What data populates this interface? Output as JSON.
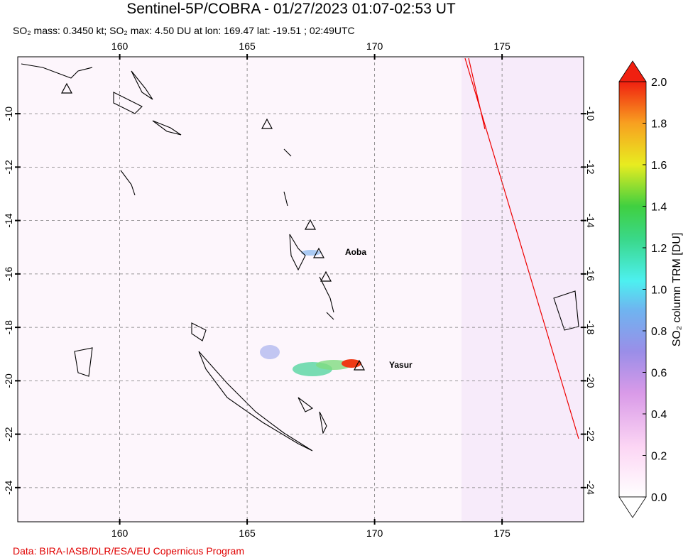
{
  "header": {
    "title": "Sentinel-5P/COBRA - 01/27/2023 01:07-02:53 UT",
    "subtitle": "SO₂ mass: 0.3450 kt; SO₂ max: 4.50 DU at lon: 169.47 lat: -19.51 ; 02:49UTC"
  },
  "map": {
    "lonlim": [
      156,
      178.2
    ],
    "latlim": [
      -25.28,
      -7.87
    ],
    "lon_ticks": [
      160,
      165,
      170,
      175
    ],
    "lat_ticks": [
      -10,
      -12,
      -14,
      -16,
      -18,
      -20,
      -22,
      -24
    ],
    "volcanoes": [
      "Aoba",
      "Yasur"
    ]
  },
  "colorbar": {
    "label": "SO₂ column TRM [DU]",
    "lim": [
      0,
      2
    ],
    "ticks": [
      {
        "value": 0,
        "label": "0.0"
      },
      {
        "value": 0.2,
        "label": "0.2"
      },
      {
        "value": 0.4,
        "label": "0.4"
      },
      {
        "value": 0.6,
        "label": "0.6"
      },
      {
        "value": 0.8,
        "label": "0.8"
      },
      {
        "value": 1,
        "label": "1.0"
      },
      {
        "value": 1.2,
        "label": "1.2"
      },
      {
        "value": 1.4,
        "label": "1.4"
      },
      {
        "value": 1.6,
        "label": "1.6"
      },
      {
        "value": 1.8,
        "label": "1.8"
      },
      {
        "value": 2,
        "label": "2.0"
      }
    ]
  },
  "footer": "Data: BIRA-IASB/DLR/ESA/EU Copernicus Program"
}
